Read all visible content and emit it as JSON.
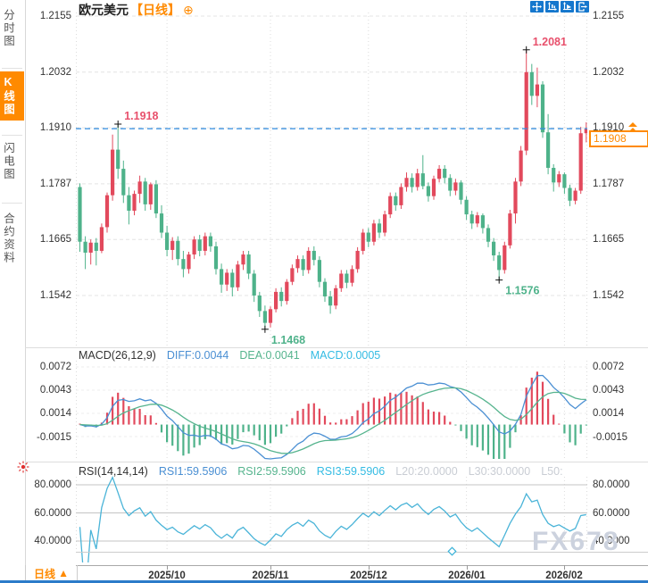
{
  "title": {
    "symbol": "欧元美元",
    "period": "【日线】",
    "add_icon": "⊕"
  },
  "sidebar": {
    "items": [
      {
        "label": "分时图",
        "active": false
      },
      {
        "label": "K线图",
        "active": true
      },
      {
        "label": "闪电图",
        "active": false
      },
      {
        "label": "合约资料",
        "active": false
      }
    ]
  },
  "toolbar": {
    "icons": [
      "pan-crosshair",
      "scale-axes",
      "scale-axes-auto",
      "exit"
    ]
  },
  "main_chart": {
    "axis": [
      "1.2155",
      "1.2032",
      "1.1910",
      "1.1787",
      "1.1665",
      "1.1542"
    ],
    "current_price": "1.1908",
    "current_level": "1.1910"
  },
  "macd_panel": {
    "header": "MACD(26,12,9)",
    "diff_label": "DIFF:0.0044",
    "dea_label": "DEA:0.0041",
    "macd_label": "MACD:0.0005",
    "axis": [
      "0.0072",
      "0.0043",
      "0.0014",
      "-0.0015"
    ]
  },
  "rsi_panel": {
    "header": "RSI(14,14,14)",
    "rsi1_label": "RSI1:59.5906",
    "rsi2_label": "RSI2:59.5906",
    "rsi3_label": "RSI3:59.5906",
    "l20_label": "L20:20.0000",
    "l30_label": "L30:30.0000",
    "l50_label": "L50:",
    "axis": [
      "80.0000",
      "60.0000",
      "40.0000"
    ]
  },
  "x_axis": {
    "labels": [
      "2025/10",
      "2025/11",
      "2025/12",
      "2026/01",
      "2026/02"
    ]
  },
  "bottom": {
    "tab_label": "日线",
    "tab_arrow": "▲"
  },
  "watermark": "FX678",
  "colors": {
    "up": "#e2495c",
    "down": "#4eb28a",
    "accent_orange": "#ff8a00",
    "price_line_blue": "#2f8ce0",
    "diff_blue": "#4a8fd3",
    "dea_green": "#56b48e",
    "rsi_cyan": "#4ab4d8",
    "toolbar_blue": "#1577cd",
    "grid": "#e4e4e4",
    "anno_red": "#e8506c",
    "anno_green": "#4eb28a"
  },
  "chart_data": {
    "type": "candlestick",
    "title": "欧元美元 【日线】 (EUR/USD daily)",
    "y_axis_levels": [
      1.2155,
      1.2032,
      1.191,
      1.1787,
      1.1665,
      1.1542
    ],
    "y_range_top": 1.2155,
    "y_range_bottom": 1.1542,
    "current_price": 1.1908,
    "month_ticks": [
      {
        "label": "2025/10",
        "index": 16
      },
      {
        "label": "2025/11",
        "index": 35
      },
      {
        "label": "2025/12",
        "index": 53
      },
      {
        "label": "2026/01",
        "index": 71
      },
      {
        "label": "2026/02",
        "index": 89
      }
    ],
    "annotations": [
      {
        "value": 1.1918,
        "index": 7,
        "placement": "above",
        "color": "#e8506c",
        "text": "1.1918"
      },
      {
        "value": 1.2081,
        "index": 82,
        "placement": "above",
        "color": "#e8506c",
        "text": "1.2081"
      },
      {
        "value": 1.1468,
        "index": 34,
        "placement": "below",
        "color": "#4eb28a",
        "text": "1.1468"
      },
      {
        "value": 1.1576,
        "index": 77,
        "placement": "below",
        "color": "#4eb28a",
        "text": "1.1576"
      }
    ],
    "candles": [
      [
        1.178,
        1.1788,
        1.1638,
        1.166
      ],
      [
        1.166,
        1.1672,
        1.16,
        1.1636
      ],
      [
        1.1636,
        1.1665,
        1.161,
        1.1658
      ],
      [
        1.1658,
        1.1668,
        1.1608,
        1.164
      ],
      [
        1.164,
        1.17,
        1.1635,
        1.1692
      ],
      [
        1.1692,
        1.1768,
        1.168,
        1.1762
      ],
      [
        1.1762,
        1.1895,
        1.175,
        1.1862
      ],
      [
        1.1862,
        1.1918,
        1.1798,
        1.182
      ],
      [
        1.182,
        1.1838,
        1.1745,
        1.1762
      ],
      [
        1.1762,
        1.178,
        1.1698,
        1.1728
      ],
      [
        1.1728,
        1.1772,
        1.1718,
        1.1765
      ],
      [
        1.1765,
        1.1805,
        1.1745,
        1.1792
      ],
      [
        1.1792,
        1.18,
        1.1728,
        1.1742
      ],
      [
        1.1742,
        1.179,
        1.173,
        1.1786
      ],
      [
        1.1786,
        1.1795,
        1.1712,
        1.1722
      ],
      [
        1.1722,
        1.174,
        1.1668,
        1.168
      ],
      [
        1.168,
        1.1695,
        1.1628,
        1.1642
      ],
      [
        1.1642,
        1.167,
        1.162,
        1.1662
      ],
      [
        1.1662,
        1.1672,
        1.1608,
        1.1622
      ],
      [
        1.1622,
        1.164,
        1.1582,
        1.16
      ],
      [
        1.16,
        1.1638,
        1.159,
        1.1632
      ],
      [
        1.1632,
        1.1672,
        1.1622,
        1.1665
      ],
      [
        1.1665,
        1.1675,
        1.1628,
        1.164
      ],
      [
        1.164,
        1.168,
        1.163,
        1.1672
      ],
      [
        1.1672,
        1.168,
        1.1638,
        1.165
      ],
      [
        1.165,
        1.166,
        1.1588,
        1.16
      ],
      [
        1.16,
        1.1612,
        1.1548,
        1.1566
      ],
      [
        1.1566,
        1.16,
        1.1552,
        1.1592
      ],
      [
        1.1592,
        1.16,
        1.154,
        1.156
      ],
      [
        1.156,
        1.1618,
        1.1552,
        1.161
      ],
      [
        1.161,
        1.164,
        1.1598,
        1.1632
      ],
      [
        1.1632,
        1.164,
        1.1578,
        1.159
      ],
      [
        1.159,
        1.1598,
        1.1528,
        1.1542
      ],
      [
        1.1542,
        1.155,
        1.1495,
        1.1508
      ],
      [
        1.1508,
        1.152,
        1.1468,
        1.1482
      ],
      [
        1.1482,
        1.1518,
        1.1472,
        1.1512
      ],
      [
        1.1512,
        1.1558,
        1.1505,
        1.155
      ],
      [
        1.155,
        1.156,
        1.1518,
        1.153
      ],
      [
        1.153,
        1.1578,
        1.1522,
        1.1572
      ],
      [
        1.1572,
        1.161,
        1.1565,
        1.1602
      ],
      [
        1.1602,
        1.163,
        1.1592,
        1.1622
      ],
      [
        1.1622,
        1.163,
        1.1585,
        1.1598
      ],
      [
        1.1598,
        1.1648,
        1.159,
        1.164
      ],
      [
        1.164,
        1.165,
        1.1608,
        1.162
      ],
      [
        1.162,
        1.1628,
        1.156,
        1.1572
      ],
      [
        1.1572,
        1.158,
        1.1528,
        1.154
      ],
      [
        1.154,
        1.1552,
        1.1502,
        1.152
      ],
      [
        1.152,
        1.1565,
        1.1512,
        1.1558
      ],
      [
        1.1558,
        1.1598,
        1.155,
        1.159
      ],
      [
        1.159,
        1.1598,
        1.1558,
        1.157
      ],
      [
        1.157,
        1.1608,
        1.1562,
        1.16
      ],
      [
        1.16,
        1.1648,
        1.1592,
        1.164
      ],
      [
        1.164,
        1.1688,
        1.1632,
        1.168
      ],
      [
        1.168,
        1.169,
        1.1648,
        1.166
      ],
      [
        1.166,
        1.1708,
        1.1652,
        1.17
      ],
      [
        1.17,
        1.171,
        1.1668,
        1.168
      ],
      [
        1.168,
        1.1728,
        1.1672,
        1.172
      ],
      [
        1.172,
        1.1768,
        1.1712,
        1.176
      ],
      [
        1.176,
        1.1768,
        1.1728,
        1.174
      ],
      [
        1.174,
        1.1788,
        1.1732,
        1.178
      ],
      [
        1.178,
        1.1812,
        1.177,
        1.18
      ],
      [
        1.18,
        1.181,
        1.1768,
        1.178
      ],
      [
        1.178,
        1.182,
        1.1772,
        1.181
      ],
      [
        1.181,
        1.185,
        1.1775,
        1.1782
      ],
      [
        1.1782,
        1.179,
        1.1748,
        1.176
      ],
      [
        1.176,
        1.1805,
        1.1752,
        1.1798
      ],
      [
        1.1798,
        1.1828,
        1.179,
        1.182
      ],
      [
        1.182,
        1.1828,
        1.1788,
        1.18
      ],
      [
        1.18,
        1.1808,
        1.176,
        1.1772
      ],
      [
        1.1772,
        1.1798,
        1.1762,
        1.179
      ],
      [
        1.179,
        1.1795,
        1.1742,
        1.1752
      ],
      [
        1.1752,
        1.176,
        1.1708,
        1.172
      ],
      [
        1.172,
        1.1728,
        1.1688,
        1.17
      ],
      [
        1.17,
        1.1725,
        1.1692,
        1.1718
      ],
      [
        1.1718,
        1.1722,
        1.1678,
        1.169
      ],
      [
        1.169,
        1.1698,
        1.1648,
        1.166
      ],
      [
        1.166,
        1.1668,
        1.1618,
        1.163
      ],
      [
        1.163,
        1.1638,
        1.1576,
        1.1598
      ],
      [
        1.1598,
        1.166,
        1.159,
        1.1652
      ],
      [
        1.1652,
        1.173,
        1.1645,
        1.1722
      ],
      [
        1.1722,
        1.18,
        1.17,
        1.1792
      ],
      [
        1.1792,
        1.187,
        1.1782,
        1.186
      ],
      [
        1.186,
        1.2081,
        1.185,
        1.2032
      ],
      [
        1.2032,
        1.205,
        1.196,
        1.198
      ],
      [
        1.198,
        1.2042,
        1.1955,
        1.2005
      ],
      [
        1.2005,
        1.2012,
        1.1888,
        1.19
      ],
      [
        1.19,
        1.194,
        1.1808,
        1.1822
      ],
      [
        1.1822,
        1.183,
        1.177,
        1.179
      ],
      [
        1.179,
        1.1815,
        1.178,
        1.1808
      ],
      [
        1.1808,
        1.1812,
        1.1765,
        1.1778
      ],
      [
        1.1778,
        1.1785,
        1.1738,
        1.175
      ],
      [
        1.175,
        1.1778,
        1.1742,
        1.1772
      ],
      [
        1.1772,
        1.1912,
        1.1765,
        1.1898
      ],
      [
        1.1898,
        1.1922,
        1.1878,
        1.1908
      ]
    ],
    "macd": {
      "params": [
        26,
        12,
        9
      ],
      "diff": 0.0044,
      "dea": 0.0041,
      "macd": 0.0005,
      "axis_levels": [
        0.0072,
        0.0043,
        0.0014,
        -0.0015
      ]
    },
    "rsi": {
      "periods": [
        14,
        14,
        14
      ],
      "rsi1": 59.5906,
      "rsi2": 59.5906,
      "rsi3": 59.5906,
      "levels": {
        "L20": 20.0,
        "L30": 30.0,
        "L50": null
      },
      "axis_levels": [
        80,
        60,
        40
      ]
    }
  }
}
